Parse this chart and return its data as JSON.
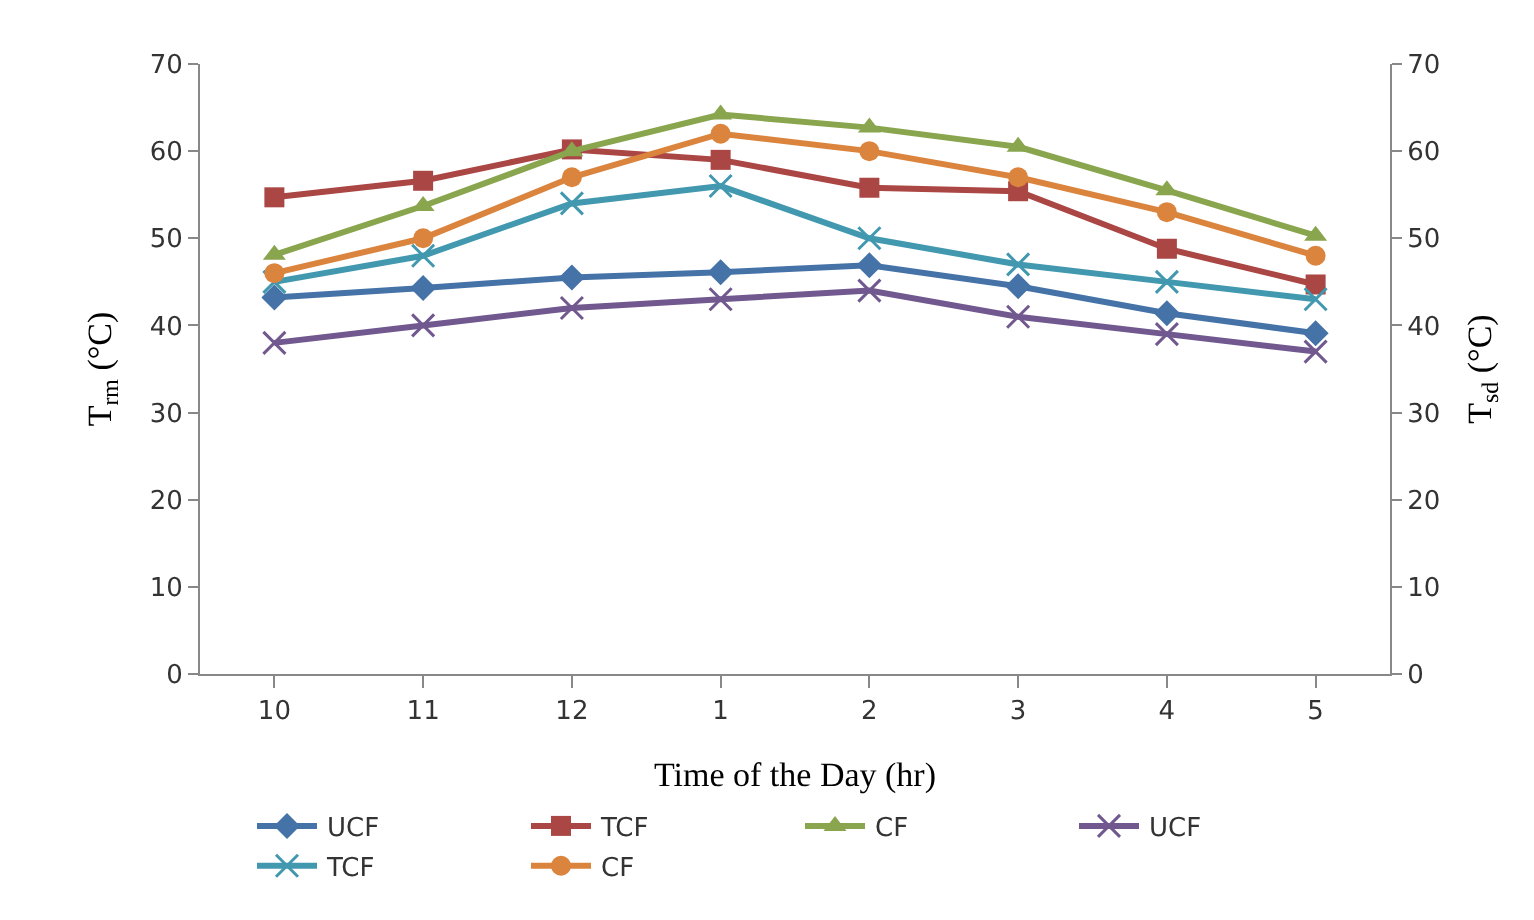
{
  "chart_data": {
    "type": "line",
    "xlabel": "Time of the Day (hr)",
    "ylabel": "T$_{rm}$ (°C)",
    "y2label": "T$_{sd}$ (°C)",
    "categories": [
      "10",
      "11",
      "12",
      "1",
      "2",
      "3",
      "4",
      "5"
    ],
    "ylim": [
      0,
      70
    ],
    "yticks": [
      0,
      10,
      20,
      30,
      40,
      50,
      60,
      70
    ],
    "y2lim": [
      0,
      70
    ],
    "y2ticks": [
      0,
      10,
      20,
      30,
      40,
      50,
      60,
      70
    ],
    "grid": false,
    "legend": "bottom",
    "series": [
      {
        "name": "UCF",
        "color": "#4572a7",
        "marker": "diamond",
        "values": [
          43.2,
          44.3,
          45.5,
          46.1,
          46.9,
          44.5,
          41.4,
          39.1
        ]
      },
      {
        "name": "TCF",
        "color": "#aa4643",
        "marker": "square",
        "values": [
          54.7,
          56.6,
          60.2,
          59.0,
          55.8,
          55.4,
          48.8,
          44.7
        ]
      },
      {
        "name": "CF",
        "color": "#89a54e",
        "marker": "triangle",
        "values": [
          48.1,
          53.7,
          60.0,
          64.2,
          62.7,
          60.5,
          55.5,
          50.3
        ]
      },
      {
        "name": "UCF",
        "color": "#71588f",
        "marker": "cross",
        "axis": "y2",
        "values": [
          38,
          40,
          42,
          43,
          44,
          41,
          39,
          37
        ]
      },
      {
        "name": "TCF",
        "color": "#4198af",
        "marker": "cross",
        "axis": "y2",
        "values": [
          45,
          48,
          54,
          56,
          50,
          47,
          45,
          43
        ]
      },
      {
        "name": "CF",
        "color": "#db843d",
        "marker": "circle",
        "axis": "y2",
        "values": [
          46,
          50,
          57,
          62,
          60,
          57,
          53,
          48
        ]
      }
    ]
  }
}
